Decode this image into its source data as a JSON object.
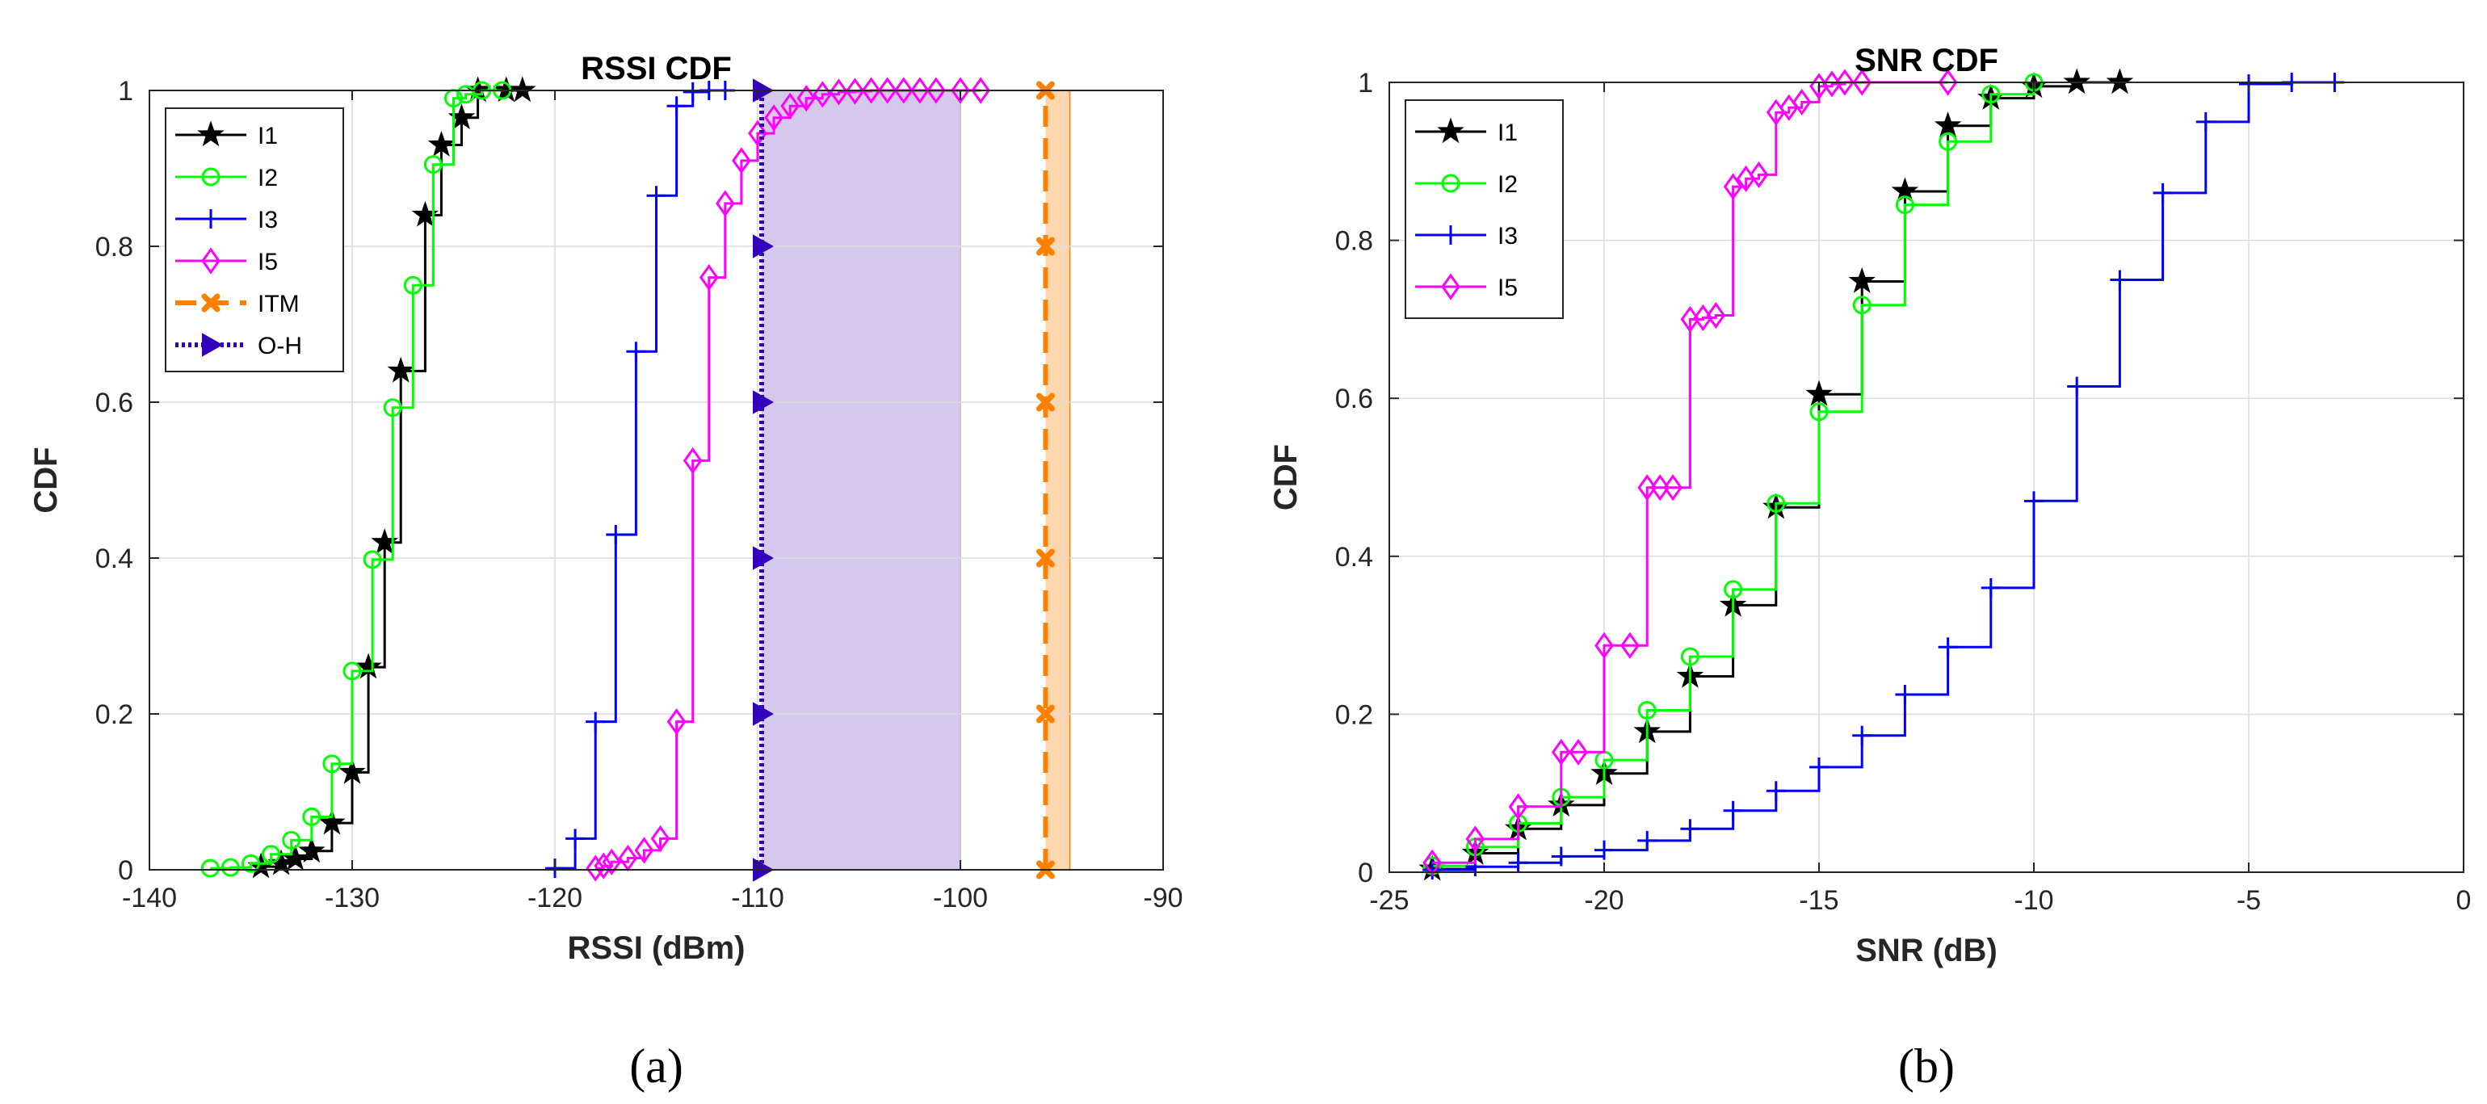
{
  "chart_data": [
    {
      "type": "line",
      "subtype": "empirical-cdf (stairs)",
      "title": "RSSI CDF",
      "xlabel": "RSSI (dBm)",
      "ylabel": "CDF",
      "xlim": [
        -140,
        -90
      ],
      "ylim": [
        0,
        1
      ],
      "xticks": [
        "-140",
        "-130",
        "-120",
        "-110",
        "-100",
        "-90"
      ],
      "yticks": [
        "0",
        "0.2",
        "0.4",
        "0.6",
        "0.8",
        "1"
      ],
      "grid": true,
      "legend_position": "top-left",
      "subfigure_label": "(a)",
      "series": [
        {
          "name": "I1",
          "color": "#000000",
          "marker": "star",
          "line": "solid",
          "x": [
            -134.5,
            -133.5,
            -132.8,
            -132,
            -131,
            -130,
            -129.2,
            -128.4,
            -127.6,
            -126.4,
            -125.6,
            -124.6,
            -123.8,
            -122.4,
            -121.6
          ],
          "y": [
            0.004,
            0.008,
            0.014,
            0.024,
            0.06,
            0.125,
            0.26,
            0.42,
            0.64,
            0.84,
            0.93,
            0.965,
            1.0,
            1.0,
            1.0
          ]
        },
        {
          "name": "I2",
          "color": "#00FF00",
          "marker": "circle",
          "line": "solid",
          "x": [
            -137,
            -136,
            -135,
            -134,
            -133,
            -132,
            -131,
            -130,
            -129,
            -128,
            -127,
            -126,
            -125,
            -124.4,
            -123.6,
            -122.6
          ],
          "y": [
            0.002,
            0.003,
            0.008,
            0.02,
            0.038,
            0.068,
            0.136,
            0.255,
            0.398,
            0.593,
            0.75,
            0.905,
            0.99,
            0.995,
            1.0,
            1.0
          ]
        },
        {
          "name": "I3",
          "color": "#0000FF",
          "marker": "plus",
          "line": "solid",
          "x": [
            -120,
            -119,
            -118,
            -117,
            -116,
            -115,
            -114,
            -113.2,
            -112.4,
            -111.6
          ],
          "y": [
            0.002,
            0.04,
            0.19,
            0.43,
            0.665,
            0.865,
            0.98,
            0.998,
            1.0,
            1.0
          ]
        },
        {
          "name": "I5",
          "color": "#FF00FF",
          "marker": "diamond",
          "line": "solid",
          "x": [
            -118,
            -117.6,
            -117.2,
            -116.4,
            -115.6,
            -114.8,
            -114,
            -113.2,
            -112.4,
            -111.6,
            -110.8,
            -110,
            -109.2,
            -108.4,
            -107.6,
            -106.8,
            -106,
            -105.2,
            -104.4,
            -103.6,
            -102.8,
            -102,
            -101.2,
            -100,
            -99
          ],
          "y": [
            0.002,
            0.005,
            0.01,
            0.015,
            0.025,
            0.04,
            0.19,
            0.525,
            0.76,
            0.855,
            0.91,
            0.945,
            0.965,
            0.98,
            0.99,
            0.995,
            0.998,
            0.999,
            1.0,
            1.0,
            1.0,
            1.0,
            1.0,
            1.0,
            1.0
          ]
        },
        {
          "name": "ITM",
          "color": "#FF8000",
          "marker": "x",
          "line": "dashed",
          "x": [
            -95.8,
            -95.8,
            -95.8,
            -95.8,
            -95.8,
            -95.8
          ],
          "y": [
            0,
            0.2,
            0.4,
            0.6,
            0.8,
            1.0
          ],
          "band": [
            -95.8,
            -94.6
          ],
          "band_color": "#FFD6AD"
        },
        {
          "name": "O-H",
          "color": "#3300BB",
          "marker": "triangle-right",
          "line": "dotted",
          "x": [
            -109.8,
            -109.8,
            -109.8,
            -109.8,
            -109.8,
            -109.8
          ],
          "y": [
            0,
            0.2,
            0.4,
            0.6,
            0.8,
            1.0
          ],
          "band": [
            -109.8,
            -100
          ],
          "band_color": "#D4C8EC"
        }
      ]
    },
    {
      "type": "line",
      "subtype": "empirical-cdf (stairs)",
      "title": "SNR CDF",
      "xlabel": "SNR (dB)",
      "ylabel": "CDF",
      "xlim": [
        -25,
        0
      ],
      "ylim": [
        0,
        1
      ],
      "xticks": [
        "-25",
        "-20",
        "-15",
        "-10",
        "-5",
        "0"
      ],
      "yticks": [
        "0",
        "0.2",
        "0.4",
        "0.6",
        "0.8",
        "1"
      ],
      "grid": true,
      "legend_position": "top-left",
      "subfigure_label": "(b)",
      "series": [
        {
          "name": "I1",
          "color": "#000000",
          "marker": "star",
          "line": "solid",
          "x": [
            -24,
            -23,
            -22,
            -21,
            -20,
            -19,
            -18,
            -17,
            -16,
            -15,
            -14,
            -13,
            -12,
            -11,
            -10,
            -9,
            -8
          ],
          "y": [
            0.004,
            0.024,
            0.055,
            0.085,
            0.125,
            0.178,
            0.248,
            0.338,
            0.462,
            0.605,
            0.748,
            0.862,
            0.945,
            0.98,
            0.995,
            1.0,
            1.0
          ]
        },
        {
          "name": "I2",
          "color": "#00FF00",
          "marker": "circle",
          "line": "solid",
          "x": [
            -24,
            -23,
            -22,
            -21,
            -20,
            -19,
            -18,
            -17,
            -16,
            -15,
            -14,
            -13,
            -12,
            -11,
            -10
          ],
          "y": [
            0.008,
            0.032,
            0.062,
            0.095,
            0.142,
            0.205,
            0.273,
            0.358,
            0.467,
            0.583,
            0.718,
            0.845,
            0.925,
            0.985,
            1.0
          ]
        },
        {
          "name": "I3",
          "color": "#0000FF",
          "marker": "plus",
          "line": "solid",
          "x": [
            -24,
            -23,
            -22,
            -21,
            -20,
            -19,
            -18,
            -17,
            -16,
            -15,
            -14,
            -13,
            -12,
            -11,
            -10,
            -9,
            -8,
            -7,
            -6,
            -5,
            -4,
            -3
          ],
          "y": [
            0.003,
            0.007,
            0.012,
            0.02,
            0.028,
            0.04,
            0.055,
            0.078,
            0.103,
            0.133,
            0.173,
            0.225,
            0.285,
            0.36,
            0.47,
            0.615,
            0.75,
            0.86,
            0.95,
            0.998,
            1.0,
            1.0
          ]
        },
        {
          "name": "I5",
          "color": "#FF00FF",
          "marker": "diamond",
          "line": "solid",
          "x": [
            -24,
            -23,
            -22,
            -21,
            -20.6,
            -20,
            -19.4,
            -19,
            -18.7,
            -18.4,
            -18,
            -17.7,
            -17.4,
            -17,
            -16.7,
            -16.4,
            -16,
            -15.7,
            -15.4,
            -15,
            -14.7,
            -14.4,
            -14,
            -12
          ],
          "y": [
            0.012,
            0.042,
            0.083,
            0.152,
            0.152,
            0.287,
            0.287,
            0.487,
            0.487,
            0.487,
            0.7,
            0.702,
            0.705,
            0.868,
            0.878,
            0.883,
            0.962,
            0.968,
            0.975,
            0.995,
            0.998,
            1.0,
            1.0,
            1.0
          ]
        }
      ]
    }
  ]
}
